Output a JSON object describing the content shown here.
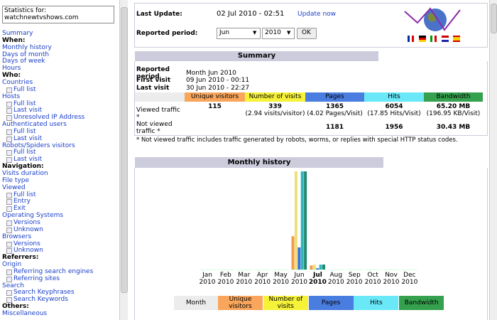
{
  "sidebar": {
    "title": "Statistics for:",
    "site": "watchnewtvshows.com",
    "menu": [
      {
        "text": "Summary",
        "kind": "link"
      },
      {
        "text": "When:",
        "kind": "header"
      },
      {
        "text": "Monthly history",
        "kind": "link"
      },
      {
        "text": "Days of month",
        "kind": "link"
      },
      {
        "text": "Days of week",
        "kind": "link"
      },
      {
        "text": "Hours",
        "kind": "link"
      },
      {
        "text": "Who:",
        "kind": "header"
      },
      {
        "text": "Countries",
        "kind": "link"
      },
      {
        "text": "Full list",
        "kind": "sub"
      },
      {
        "text": "Hosts",
        "kind": "link"
      },
      {
        "text": "Full list",
        "kind": "sub"
      },
      {
        "text": "Last visit",
        "kind": "sub"
      },
      {
        "text": "Unresolved IP Address",
        "kind": "sub"
      },
      {
        "text": "Authenticated users",
        "kind": "link"
      },
      {
        "text": "Full list",
        "kind": "sub"
      },
      {
        "text": "Last visit",
        "kind": "sub"
      },
      {
        "text": "Robots/Spiders visitors",
        "kind": "link"
      },
      {
        "text": "Full list",
        "kind": "sub"
      },
      {
        "text": "Last visit",
        "kind": "sub"
      },
      {
        "text": "Navigation:",
        "kind": "header"
      },
      {
        "text": "Visits duration",
        "kind": "link"
      },
      {
        "text": "File type",
        "kind": "link"
      },
      {
        "text": "Viewed",
        "kind": "link"
      },
      {
        "text": "Full list",
        "kind": "sub"
      },
      {
        "text": "Entry",
        "kind": "sub"
      },
      {
        "text": "Exit",
        "kind": "sub"
      },
      {
        "text": "Operating Systems",
        "kind": "link"
      },
      {
        "text": "Versions",
        "kind": "sub"
      },
      {
        "text": "Unknown",
        "kind": "sub"
      },
      {
        "text": "Browsers",
        "kind": "link"
      },
      {
        "text": "Versions",
        "kind": "sub"
      },
      {
        "text": "Unknown",
        "kind": "sub"
      },
      {
        "text": "Referrers:",
        "kind": "header"
      },
      {
        "text": "Origin",
        "kind": "link"
      },
      {
        "text": "Referring search engines",
        "kind": "sub"
      },
      {
        "text": "Referring sites",
        "kind": "sub"
      },
      {
        "text": "Search",
        "kind": "link"
      },
      {
        "text": "Search Keyphrases",
        "kind": "sub"
      },
      {
        "text": "Search Keywords",
        "kind": "sub"
      },
      {
        "text": "Others:",
        "kind": "header"
      },
      {
        "text": "Miscellaneous",
        "kind": "link"
      }
    ]
  },
  "header": {
    "last_update_label": "Last Update:",
    "last_update": "02 Jul 2010 - 02:51",
    "update_now": "Update now",
    "period_label": "Reported period:",
    "month": "Jun",
    "year": "2010",
    "ok": "OK"
  },
  "summary": {
    "title": "Summary",
    "info": [
      [
        "Reported period",
        "Month Jun 2010"
      ],
      [
        "First visit",
        "09 Jun 2010 - 00:11"
      ],
      [
        "Last visit",
        "30 Jun 2010 - 22:27"
      ]
    ],
    "columns": [
      {
        "name": "Unique visitors",
        "color": "#f9a65c"
      },
      {
        "name": "Number of visits",
        "color": "#f6f23a"
      },
      {
        "name": "Pages",
        "color": "#4a7de0"
      },
      {
        "name": "Hits",
        "color": "#6ae8f8"
      },
      {
        "name": "Bandwidth",
        "color": "#35a14e"
      }
    ],
    "rows": [
      {
        "label": "Viewed traffic *",
        "cells": [
          [
            "115"
          ],
          [
            "339",
            "(2.94 visits/visitor)"
          ],
          [
            "1365",
            "(4.02 Pages/Visit)"
          ],
          [
            "6054",
            "(17.85 Hits/Visit)"
          ],
          [
            "65.20 MB",
            "(196.95 KB/Visit)"
          ]
        ]
      },
      {
        "label": "Not viewed traffic *",
        "cells": [
          [],
          [],
          [
            "1181"
          ],
          [
            "1956"
          ],
          [
            "30.43 MB"
          ]
        ]
      }
    ],
    "footnote": "* Not viewed traffic includes traffic generated by robots, worms, or replies with special HTTP status codes."
  },
  "monthly_history": {
    "title": "Monthly history",
    "legend_label": "Month",
    "months": [
      "Jan",
      "Feb",
      "Mar",
      "Apr",
      "May",
      "Jun",
      "Jul",
      "Aug",
      "Sep",
      "Oct",
      "Nov",
      "Dec"
    ],
    "years": [
      "2010",
      "2010",
      "2010",
      "2010",
      "2010",
      "2010",
      "2010",
      "2010",
      "2010",
      "2010",
      "2010",
      "2010"
    ],
    "highlight_index": 6,
    "series": [
      {
        "name": "Unique visitors",
        "color": "#f39b4a",
        "values": [
          0,
          0,
          0,
          0,
          0,
          115,
          14,
          0,
          0,
          0,
          0,
          0
        ]
      },
      {
        "name": "Number of visits",
        "color": "#ece07a",
        "values": [
          0,
          0,
          0,
          0,
          0,
          339,
          17,
          0,
          0,
          0,
          0,
          0
        ]
      },
      {
        "name": "Pages",
        "color": "#3f6fd8",
        "values": [
          0,
          0,
          0,
          0,
          0,
          1365,
          80,
          0,
          0,
          0,
          0,
          0
        ]
      },
      {
        "name": "Hits",
        "color": "#2fb5b8",
        "values": [
          0,
          0,
          0,
          0,
          0,
          6054,
          300,
          0,
          0,
          0,
          0,
          0
        ]
      },
      {
        "name": "Bandwidth",
        "color": "#1f8a70",
        "values": [
          0,
          0,
          0,
          0,
          0,
          65.2,
          3.3,
          0,
          0,
          0,
          0,
          0
        ]
      }
    ]
  }
}
